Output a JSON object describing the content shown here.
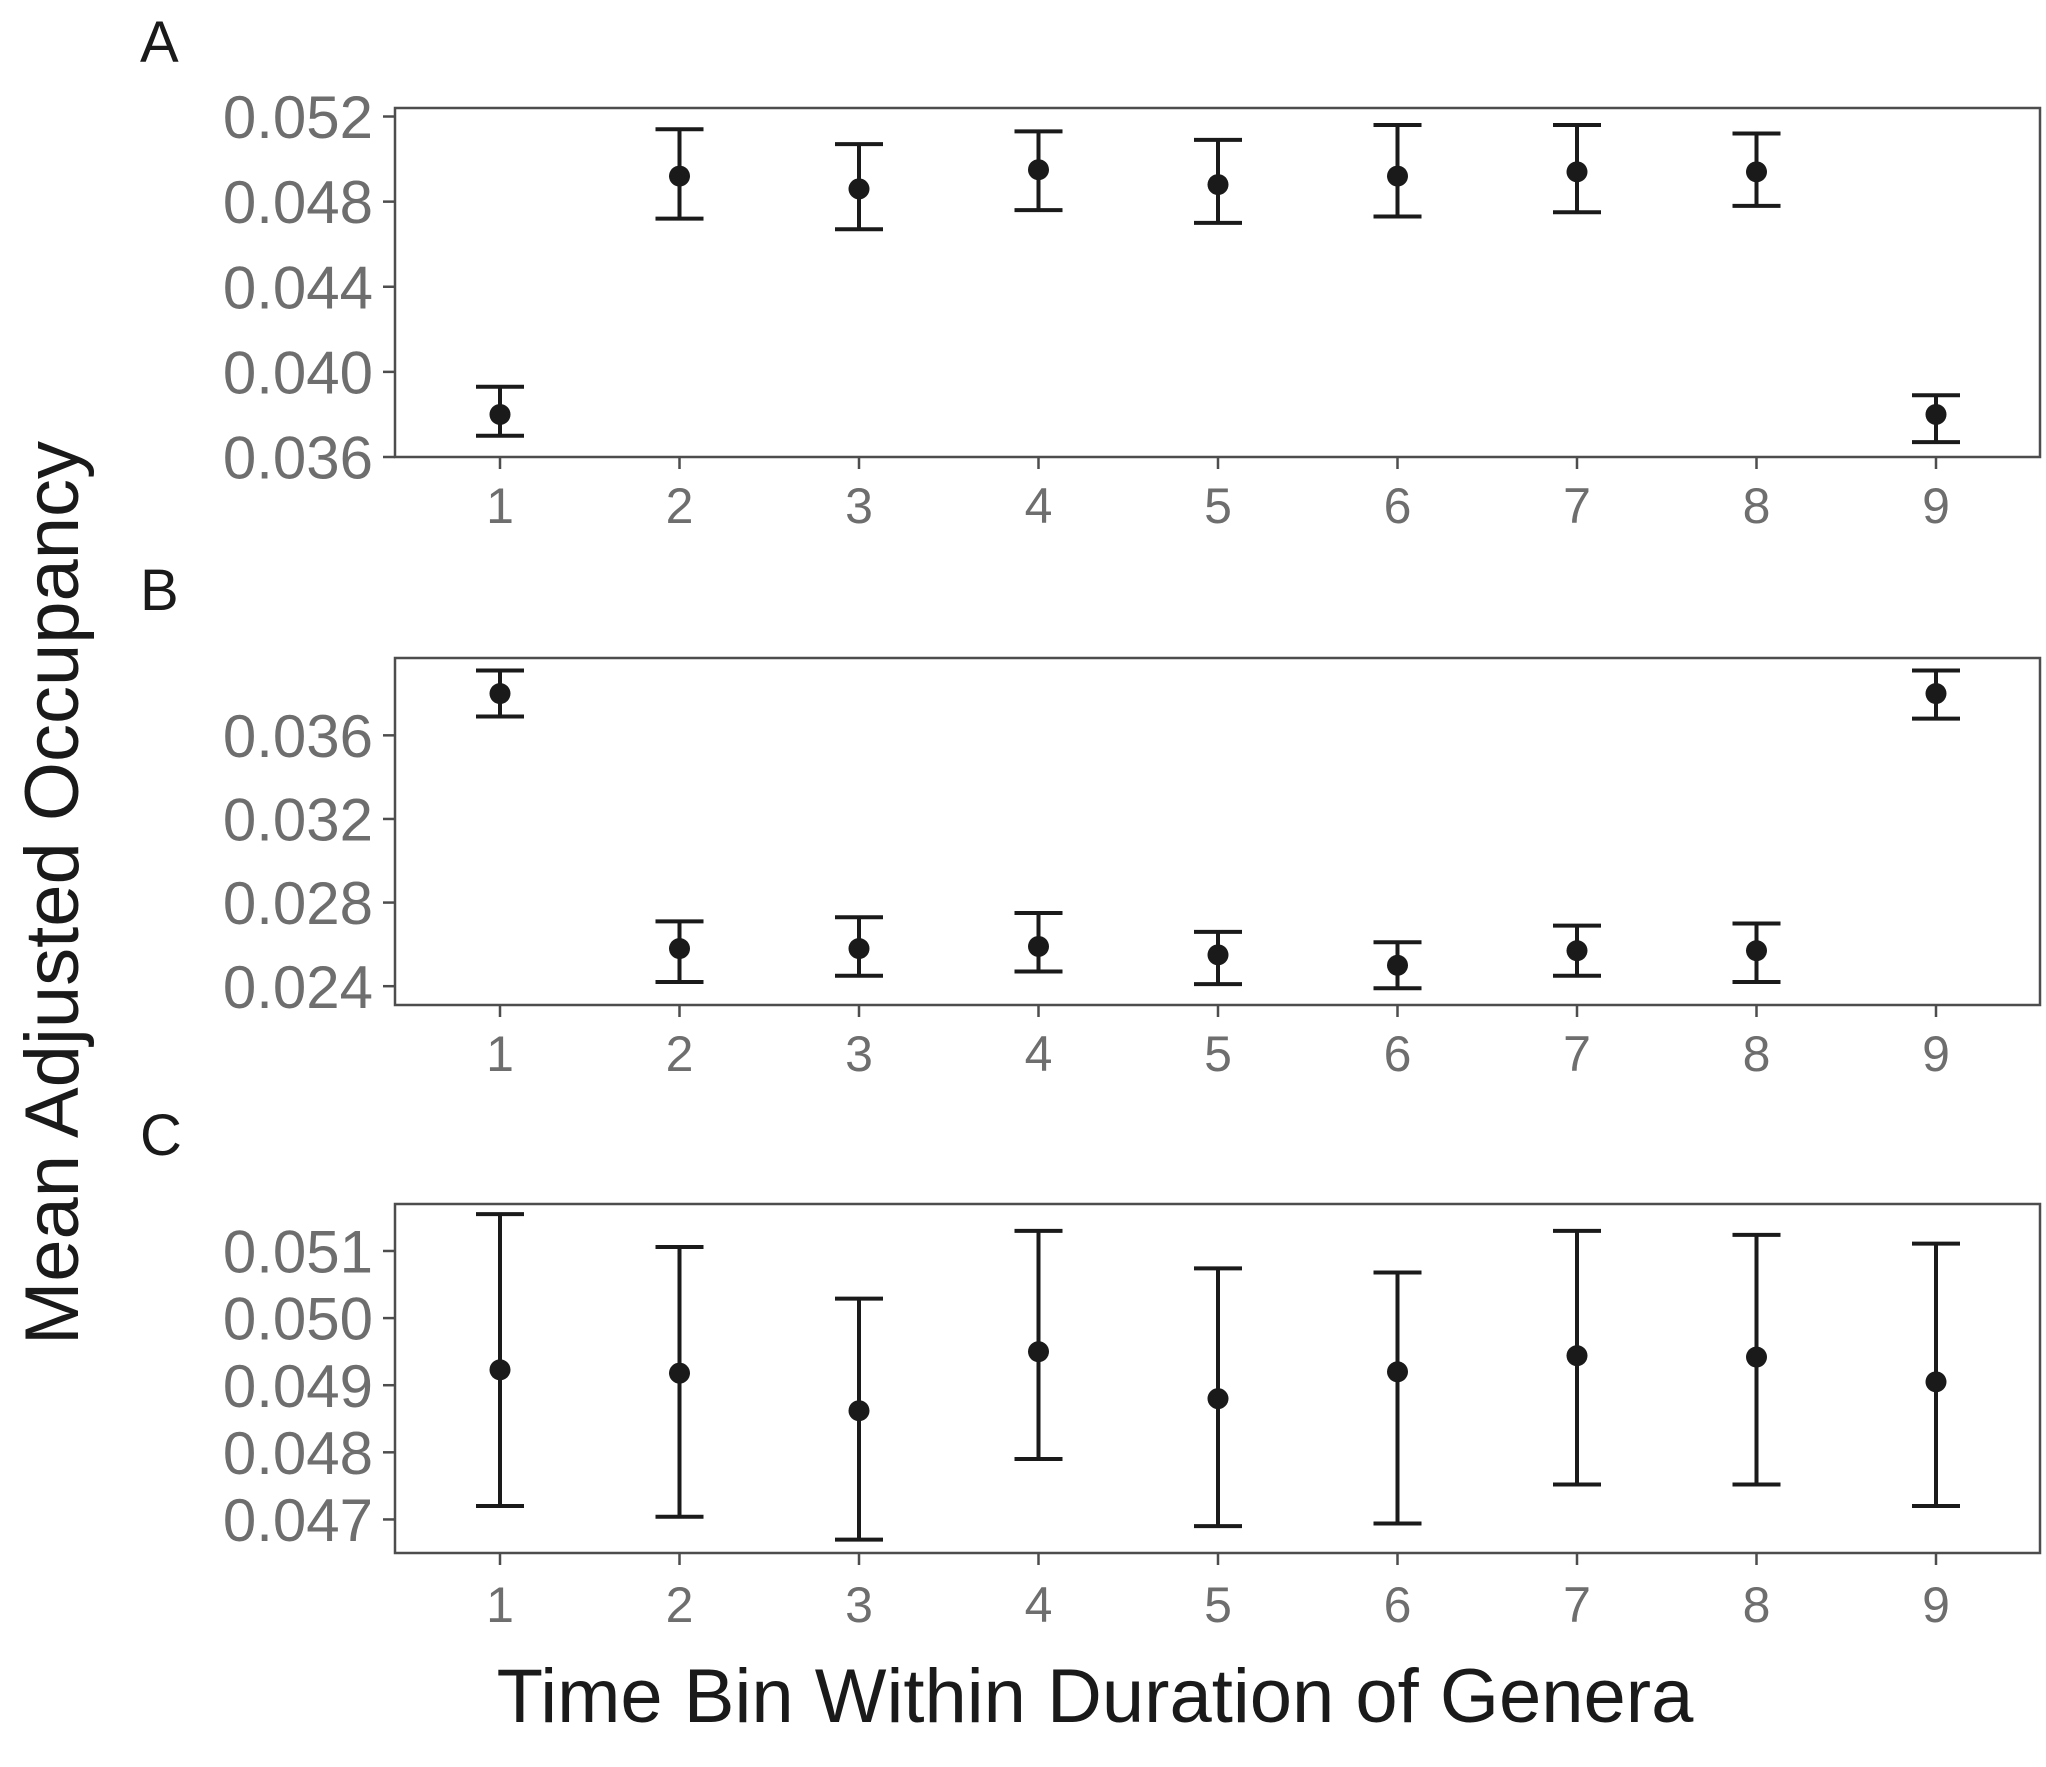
{
  "chart_data": [
    {
      "type": "scatter",
      "panel_label": "A",
      "categories": [
        "1",
        "2",
        "3",
        "4",
        "5",
        "6",
        "7",
        "8",
        "9"
      ],
      "values": [
        0.038,
        0.0492,
        0.0486,
        0.0495,
        0.0488,
        0.0492,
        0.0494,
        0.0494,
        0.038
      ],
      "error_low": [
        0.037,
        0.0472,
        0.0467,
        0.0476,
        0.047,
        0.0473,
        0.0475,
        0.0478,
        0.0367
      ],
      "error_high": [
        0.0393,
        0.0514,
        0.0507,
        0.0513,
        0.0509,
        0.0516,
        0.0516,
        0.0512,
        0.0389
      ],
      "yticks": [
        "0.036",
        "0.040",
        "0.044",
        "0.048",
        "0.052"
      ],
      "ylim": [
        0.036,
        0.0524
      ]
    },
    {
      "type": "scatter",
      "panel_label": "B",
      "categories": [
        "1",
        "2",
        "3",
        "4",
        "5",
        "6",
        "7",
        "8",
        "9"
      ],
      "values": [
        0.038,
        0.0258,
        0.0258,
        0.0259,
        0.0255,
        0.025,
        0.0257,
        0.0257,
        0.038
      ],
      "error_low": [
        0.0369,
        0.0242,
        0.0245,
        0.0247,
        0.0241,
        0.0239,
        0.0245,
        0.0242,
        0.0368
      ],
      "error_high": [
        0.0391,
        0.0271,
        0.0273,
        0.0275,
        0.0266,
        0.0261,
        0.0269,
        0.027,
        0.0391
      ],
      "yticks": [
        "0.024",
        "0.028",
        "0.032",
        "0.036"
      ],
      "ylim": [
        0.0231,
        0.0397
      ]
    },
    {
      "type": "scatter",
      "panel_label": "C",
      "categories": [
        "1",
        "2",
        "3",
        "4",
        "5",
        "6",
        "7",
        "8",
        "9"
      ],
      "values": [
        0.04923,
        0.04918,
        0.04862,
        0.0495,
        0.0488,
        0.0492,
        0.04944,
        0.04942,
        0.04905
      ],
      "error_low": [
        0.0472,
        0.04704,
        0.0467,
        0.0479,
        0.0469,
        0.04694,
        0.04752,
        0.04752,
        0.0472
      ],
      "error_high": [
        0.05155,
        0.05106,
        0.05029,
        0.0513,
        0.05074,
        0.05068,
        0.0513,
        0.05124,
        0.05111
      ],
      "yticks": [
        "0.047",
        "0.048",
        "0.049",
        "0.050",
        "0.051"
      ],
      "ylim": [
        0.0465,
        0.0517
      ]
    }
  ],
  "ylabel": "Mean Adjusted Occupancy",
  "xlabel": "Time Bin Within Duration of Genera",
  "panel_labels": [
    "A",
    "B",
    "C"
  ]
}
